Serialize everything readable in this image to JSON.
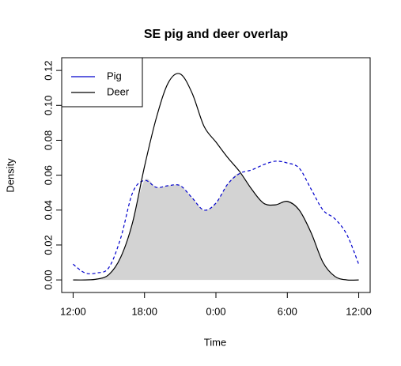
{
  "chart_data": {
    "type": "line",
    "title": "SE pig and deer overlap",
    "xlabel": "Time",
    "ylabel": "Density",
    "x": [
      0,
      1,
      2,
      3,
      4,
      5,
      6,
      7,
      8,
      9,
      10,
      11,
      12,
      13,
      14,
      15,
      16,
      17,
      18,
      19,
      20,
      21,
      22,
      23,
      24
    ],
    "series": [
      {
        "name": "Pig",
        "color": "#0000cc",
        "dash": true,
        "values": [
          0.009,
          0.004,
          0.004,
          0.007,
          0.024,
          0.05,
          0.057,
          0.053,
          0.054,
          0.054,
          0.047,
          0.04,
          0.044,
          0.055,
          0.061,
          0.063,
          0.066,
          0.068,
          0.067,
          0.064,
          0.052,
          0.04,
          0.035,
          0.026,
          0.009
        ]
      },
      {
        "name": "Deer",
        "color": "#000000",
        "dash": false,
        "values": [
          0,
          0,
          0.0005,
          0.003,
          0.013,
          0.033,
          0.065,
          0.093,
          0.113,
          0.118,
          0.107,
          0.088,
          0.079,
          0.07,
          0.062,
          0.052,
          0.044,
          0.043,
          0.045,
          0.04,
          0.027,
          0.01,
          0.002,
          0,
          0
        ]
      }
    ],
    "overlap_color": "#d3d3d3",
    "xlim": [
      -0.96,
      24.96
    ],
    "xticks": [
      {
        "value": 0,
        "label": "12:00"
      },
      {
        "value": 6,
        "label": "18:00"
      },
      {
        "value": 12,
        "label": "0:00"
      },
      {
        "value": 18,
        "label": "6:00"
      },
      {
        "value": 24,
        "label": "12:00"
      }
    ],
    "ylim": [
      -0.0072,
      0.1273
    ],
    "yticks": [
      {
        "value": 0,
        "label": "0.00"
      },
      {
        "value": 0.02,
        "label": "0.02"
      },
      {
        "value": 0.04,
        "label": "0.04"
      },
      {
        "value": 0.06,
        "label": "0.06"
      },
      {
        "value": 0.08,
        "label": "0.08"
      },
      {
        "value": 0.1,
        "label": "0.10"
      },
      {
        "value": 0.12,
        "label": "0.12"
      }
    ],
    "legend": "top-left"
  }
}
